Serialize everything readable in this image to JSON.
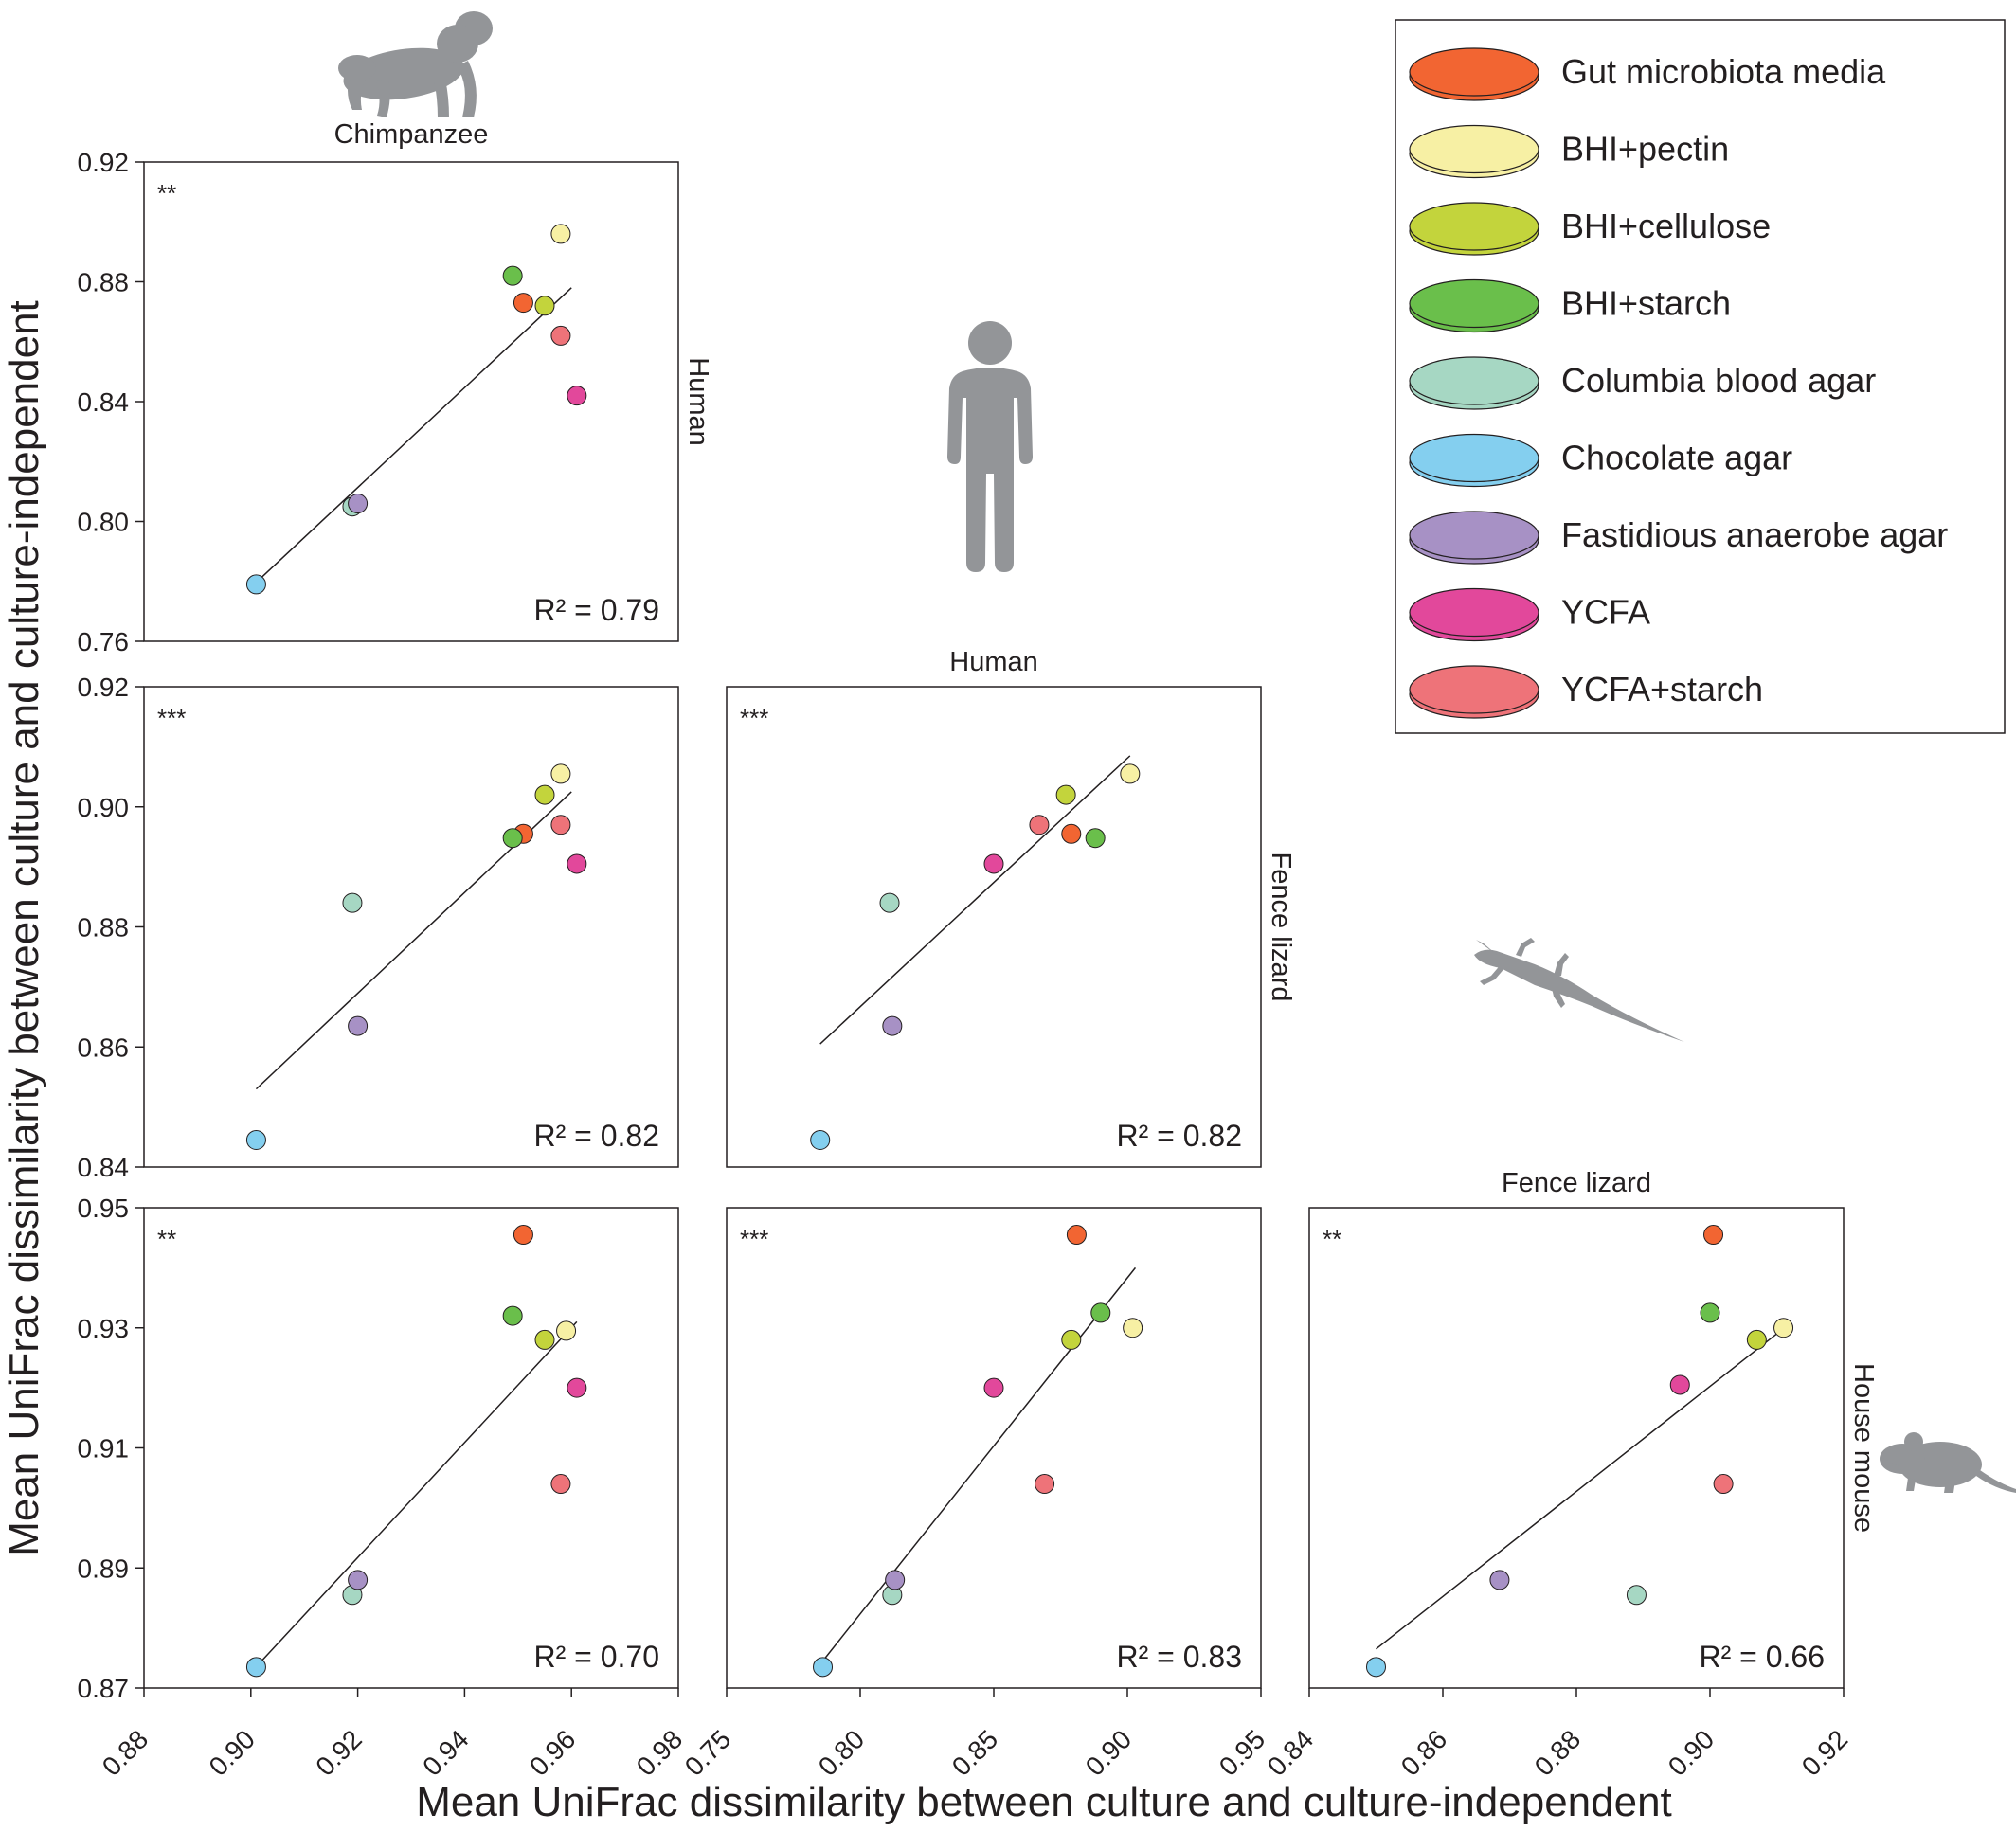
{
  "x_axis_label": "Mean UniFrac dissimilarity between culture and culture-independent",
  "y_axis_label": "Mean UniFrac dissimilarity between culture and culture-independent",
  "legend": {
    "items": [
      {
        "key": "gut",
        "label": "Gut microbiota media",
        "color": "#f26532"
      },
      {
        "key": "pectin",
        "label": "BHI+pectin",
        "color": "#f7f0a4"
      },
      {
        "key": "cellulose",
        "label": "BHI+cellulose",
        "color": "#c3d43c"
      },
      {
        "key": "starch",
        "label": "BHI+starch",
        "color": "#6abf4b"
      },
      {
        "key": "columbia",
        "label": "Columbia blood agar",
        "color": "#a6d7c3"
      },
      {
        "key": "chocolate",
        "label": "Chocolate agar",
        "color": "#84cfef"
      },
      {
        "key": "fastidious",
        "label": "Fastidious anaerobe agar",
        "color": "#a791c5"
      },
      {
        "key": "ycfa",
        "label": "YCFA",
        "color": "#e2489b"
      },
      {
        "key": "ycfa_starch",
        "label": "YCFA+starch",
        "color": "#ee7379"
      }
    ]
  },
  "icons": {
    "chimpanzee": "chimpanzee-silhouette-icon",
    "human": "human-silhouette-icon",
    "lizard": "fence-lizard-silhouette-icon",
    "mouse": "house-mouse-silhouette-icon"
  },
  "chart_data": [
    {
      "type": "scatter",
      "title": "Chimpanzee",
      "xhost": "Chimpanzee",
      "yhost": "Human",
      "significance": "**",
      "r2": "R² = 0.79",
      "xlim": [
        0.88,
        0.98
      ],
      "ylim": [
        0.76,
        0.92
      ],
      "yticks": [
        "0.76",
        "0.80",
        "0.84",
        "0.88",
        "0.92"
      ],
      "points": [
        {
          "medium": "gut",
          "x": 0.951,
          "y": 0.873
        },
        {
          "medium": "pectin",
          "x": 0.958,
          "y": 0.896
        },
        {
          "medium": "cellulose",
          "x": 0.955,
          "y": 0.872
        },
        {
          "medium": "starch",
          "x": 0.949,
          "y": 0.882
        },
        {
          "medium": "columbia",
          "x": 0.919,
          "y": 0.805
        },
        {
          "medium": "chocolate",
          "x": 0.901,
          "y": 0.779
        },
        {
          "medium": "fastidious",
          "x": 0.92,
          "y": 0.806
        },
        {
          "medium": "ycfa",
          "x": 0.961,
          "y": 0.842
        },
        {
          "medium": "ycfa_starch",
          "x": 0.958,
          "y": 0.862
        }
      ],
      "fit": {
        "x1": 0.9,
        "y1": 0.778,
        "x2": 0.96,
        "y2": 0.878
      }
    },
    {
      "type": "scatter",
      "title": "",
      "xhost": "Chimpanzee",
      "yhost": "Fence lizard",
      "significance": "***",
      "r2": "R² = 0.82",
      "xlim": [
        0.88,
        0.98
      ],
      "ylim": [
        0.84,
        0.92
      ],
      "yticks": [
        "0.84",
        "0.86",
        "0.88",
        "0.90",
        "0.92"
      ],
      "points": [
        {
          "medium": "gut",
          "x": 0.951,
          "y": 0.8955
        },
        {
          "medium": "pectin",
          "x": 0.958,
          "y": 0.9055
        },
        {
          "medium": "cellulose",
          "x": 0.955,
          "y": 0.902
        },
        {
          "medium": "starch",
          "x": 0.949,
          "y": 0.8948
        },
        {
          "medium": "columbia",
          "x": 0.919,
          "y": 0.884
        },
        {
          "medium": "chocolate",
          "x": 0.901,
          "y": 0.8445
        },
        {
          "medium": "fastidious",
          "x": 0.92,
          "y": 0.8635
        },
        {
          "medium": "ycfa",
          "x": 0.961,
          "y": 0.8905
        },
        {
          "medium": "ycfa_starch",
          "x": 0.958,
          "y": 0.897
        }
      ],
      "fit": {
        "x1": 0.901,
        "y1": 0.853,
        "x2": 0.96,
        "y2": 0.9025
      }
    },
    {
      "type": "scatter",
      "title": "Human",
      "xhost": "Human",
      "yhost": "Fence lizard",
      "significance": "***",
      "r2": "R² = 0.82",
      "xlim": [
        0.75,
        0.95
      ],
      "ylim": [
        0.84,
        0.92
      ],
      "yticks": [],
      "points": [
        {
          "medium": "gut",
          "x": 0.879,
          "y": 0.8955
        },
        {
          "medium": "pectin",
          "x": 0.901,
          "y": 0.9055
        },
        {
          "medium": "cellulose",
          "x": 0.877,
          "y": 0.902
        },
        {
          "medium": "starch",
          "x": 0.888,
          "y": 0.8948
        },
        {
          "medium": "columbia",
          "x": 0.811,
          "y": 0.884
        },
        {
          "medium": "chocolate",
          "x": 0.785,
          "y": 0.8445
        },
        {
          "medium": "fastidious",
          "x": 0.812,
          "y": 0.8635
        },
        {
          "medium": "ycfa",
          "x": 0.85,
          "y": 0.8905
        },
        {
          "medium": "ycfa_starch",
          "x": 0.867,
          "y": 0.897
        }
      ],
      "fit": {
        "x1": 0.785,
        "y1": 0.8605,
        "x2": 0.901,
        "y2": 0.9085
      }
    },
    {
      "type": "scatter",
      "title": "",
      "xhost": "Chimpanzee",
      "yhost": "House mouse",
      "significance": "**",
      "r2": "R² = 0.70",
      "xlim": [
        0.88,
        0.98
      ],
      "ylim": [
        0.87,
        0.95
      ],
      "xticks": [
        "0.88",
        "0.90",
        "0.92",
        "0.94",
        "0.96",
        "0.98"
      ],
      "yticks": [
        "0.87",
        "0.89",
        "0.91",
        "0.93",
        "0.95"
      ],
      "points": [
        {
          "medium": "gut",
          "x": 0.951,
          "y": 0.9455
        },
        {
          "medium": "pectin",
          "x": 0.959,
          "y": 0.9295
        },
        {
          "medium": "cellulose",
          "x": 0.955,
          "y": 0.928
        },
        {
          "medium": "starch",
          "x": 0.949,
          "y": 0.932
        },
        {
          "medium": "columbia",
          "x": 0.919,
          "y": 0.8855
        },
        {
          "medium": "chocolate",
          "x": 0.901,
          "y": 0.8735
        },
        {
          "medium": "fastidious",
          "x": 0.92,
          "y": 0.888
        },
        {
          "medium": "ycfa",
          "x": 0.961,
          "y": 0.92
        },
        {
          "medium": "ycfa_starch",
          "x": 0.958,
          "y": 0.904
        }
      ],
      "fit": {
        "x1": 0.902,
        "y1": 0.8745,
        "x2": 0.961,
        "y2": 0.931
      }
    },
    {
      "type": "scatter",
      "title": "",
      "xhost": "Human",
      "yhost": "House mouse",
      "significance": "***",
      "r2": "R² = 0.83",
      "xlim": [
        0.75,
        0.95
      ],
      "ylim": [
        0.87,
        0.95
      ],
      "xticks": [
        "0.75",
        "0.80",
        "0.85",
        "0.90",
        "0.95"
      ],
      "yticks": [],
      "points": [
        {
          "medium": "gut",
          "x": 0.881,
          "y": 0.9455
        },
        {
          "medium": "pectin",
          "x": 0.902,
          "y": 0.93
        },
        {
          "medium": "cellulose",
          "x": 0.879,
          "y": 0.928
        },
        {
          "medium": "starch",
          "x": 0.89,
          "y": 0.9325
        },
        {
          "medium": "columbia",
          "x": 0.812,
          "y": 0.8855
        },
        {
          "medium": "chocolate",
          "x": 0.786,
          "y": 0.8735
        },
        {
          "medium": "fastidious",
          "x": 0.813,
          "y": 0.888
        },
        {
          "medium": "ycfa",
          "x": 0.85,
          "y": 0.92
        },
        {
          "medium": "ycfa_starch",
          "x": 0.869,
          "y": 0.904
        }
      ],
      "fit": {
        "x1": 0.786,
        "y1": 0.8745,
        "x2": 0.903,
        "y2": 0.94
      }
    },
    {
      "type": "scatter",
      "title": "Fence lizard",
      "xhost": "Fence lizard",
      "yhost": "House mouse",
      "significance": "**",
      "r2": "R² = 0.66",
      "xlim": [
        0.84,
        0.92
      ],
      "ylim": [
        0.87,
        0.95
      ],
      "xticks": [
        "0.84",
        "0.86",
        "0.88",
        "0.90",
        "0.92"
      ],
      "yticks": [],
      "points": [
        {
          "medium": "gut",
          "x": 0.9005,
          "y": 0.9455
        },
        {
          "medium": "pectin",
          "x": 0.911,
          "y": 0.93
        },
        {
          "medium": "cellulose",
          "x": 0.907,
          "y": 0.928
        },
        {
          "medium": "starch",
          "x": 0.9,
          "y": 0.9325
        },
        {
          "medium": "columbia",
          "x": 0.889,
          "y": 0.8855
        },
        {
          "medium": "chocolate",
          "x": 0.85,
          "y": 0.8735
        },
        {
          "medium": "fastidious",
          "x": 0.8685,
          "y": 0.888
        },
        {
          "medium": "ycfa",
          "x": 0.8955,
          "y": 0.9205
        },
        {
          "medium": "ycfa_starch",
          "x": 0.902,
          "y": 0.904
        }
      ],
      "fit": {
        "x1": 0.85,
        "y1": 0.8765,
        "x2": 0.91,
        "y2": 0.929
      }
    }
  ]
}
